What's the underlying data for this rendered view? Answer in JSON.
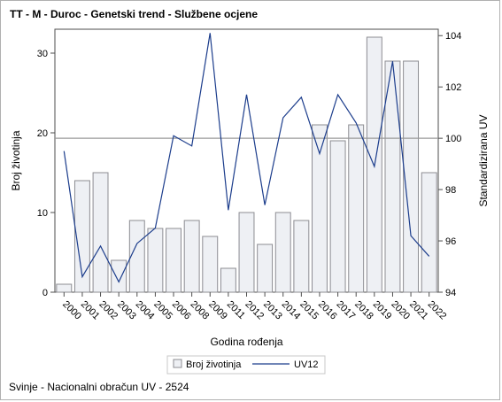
{
  "title": "TT - M - Duroc - Genetski trend - Službene ocjene",
  "footnote": "Svinje - Nacionalni obračun UV - 2524",
  "colors": {
    "bar_fill": "#eef0f4",
    "bar_stroke": "#8c8c92",
    "line": "#1c3d8c",
    "reference_line": "#9a9a9a",
    "axis": "#4d4d4d"
  },
  "chart_data": {
    "type": "bar",
    "categories": [
      "2000",
      "2001",
      "2002",
      "2003",
      "2004",
      "2005",
      "2006",
      "2008",
      "2009",
      "2011",
      "2012",
      "2013",
      "2014",
      "2015",
      "2016",
      "2017",
      "2018",
      "2019",
      "2020",
      "2021",
      "2022"
    ],
    "series": [
      {
        "name": "Broj životinja",
        "type": "bar",
        "axis": "left",
        "values": [
          1,
          14,
          15,
          4,
          9,
          8,
          8,
          9,
          7,
          3,
          10,
          6,
          10,
          9,
          21,
          19,
          21,
          32,
          29,
          29,
          15
        ]
      },
      {
        "name": "UV12",
        "type": "line",
        "axis": "right",
        "values": [
          99.5,
          94.6,
          95.8,
          94.4,
          95.9,
          96.5,
          100.1,
          99.7,
          104.1,
          97.2,
          101.7,
          97.4,
          100.8,
          101.6,
          99.4,
          101.7,
          100.6,
          98.9,
          103.0,
          96.2,
          95.4
        ]
      }
    ],
    "xlabel": "Godina rođenja",
    "ylabel": "Broj životinja",
    "y2label": "Standardizirana UV",
    "ylim": [
      0,
      33
    ],
    "yticks": [
      0,
      10,
      20,
      30
    ],
    "y2lim": [
      94,
      104.25
    ],
    "y2ticks": [
      94,
      96,
      98,
      100,
      102,
      104
    ],
    "reference_line_y2": 100,
    "legend": {
      "position": "bottom-center",
      "entries": [
        "Broj životinja",
        "UV12"
      ]
    },
    "grid": false
  }
}
